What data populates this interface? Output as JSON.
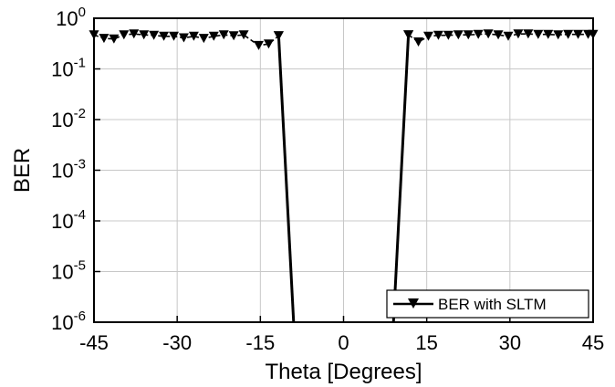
{
  "chart_data": {
    "type": "line",
    "xlabel": "Theta [Degrees]",
    "ylabel": "BER",
    "xlim": [
      -45,
      45
    ],
    "ylim": [
      1e-06,
      1
    ],
    "yscale": "log",
    "grid": true,
    "legend_position": "bottom-right",
    "x_ticks": [
      -45,
      -30,
      -15,
      0,
      15,
      30,
      45
    ],
    "x_tick_labels": [
      "-45",
      "-30",
      "-15",
      "0",
      "15",
      "30",
      "45"
    ],
    "y_ticks": [
      1e-06,
      1e-05,
      0.0001,
      0.001,
      0.01,
      0.1,
      1
    ],
    "y_tick_labels": [
      {
        "base": "10",
        "exp": "-6"
      },
      {
        "base": "10",
        "exp": "-5"
      },
      {
        "base": "10",
        "exp": "-4"
      },
      {
        "base": "10",
        "exp": "-3"
      },
      {
        "base": "10",
        "exp": "-2"
      },
      {
        "base": "10",
        "exp": "-1"
      },
      {
        "base": "10",
        "exp": "0"
      }
    ],
    "series": [
      {
        "name": "BER with SLTM",
        "color": "#000000",
        "marker": "triangle-down",
        "segments": [
          [
            [
              -45,
              0.47
            ],
            [
              -43.2,
              0.4
            ],
            [
              -41.4,
              0.39
            ],
            [
              -39.6,
              0.47
            ],
            [
              -37.8,
              0.49
            ],
            [
              -36,
              0.47
            ],
            [
              -34.2,
              0.46
            ],
            [
              -32.4,
              0.44
            ],
            [
              -30.6,
              0.44
            ],
            [
              -28.8,
              0.41
            ],
            [
              -27,
              0.44
            ],
            [
              -25.2,
              0.4
            ],
            [
              -23.4,
              0.44
            ],
            [
              -21.6,
              0.47
            ],
            [
              -19.8,
              0.45
            ],
            [
              -18,
              0.47
            ],
            [
              -15.3,
              0.29
            ],
            [
              -13.5,
              0.31
            ],
            [
              -11.7,
              0.45
            ]
          ],
          [
            [
              -11.7,
              0.45
            ],
            [
              -9,
              1e-06
            ]
          ],
          [
            [
              9,
              1e-06
            ],
            [
              11.7,
              0.47
            ]
          ],
          [
            [
              11.7,
              0.47
            ],
            [
              13.5,
              0.34
            ],
            [
              15.3,
              0.44
            ],
            [
              17.1,
              0.46
            ],
            [
              18.9,
              0.46
            ],
            [
              20.7,
              0.47
            ],
            [
              22.5,
              0.47
            ],
            [
              24.3,
              0.48
            ],
            [
              26.1,
              0.49
            ],
            [
              27.9,
              0.47
            ],
            [
              29.7,
              0.44
            ],
            [
              31.5,
              0.49
            ],
            [
              33.3,
              0.49
            ],
            [
              35.1,
              0.48
            ],
            [
              36.9,
              0.48
            ],
            [
              38.7,
              0.47
            ],
            [
              40.5,
              0.48
            ],
            [
              42.3,
              0.48
            ],
            [
              44.1,
              0.48
            ],
            [
              45,
              0.48
            ]
          ]
        ]
      }
    ]
  }
}
